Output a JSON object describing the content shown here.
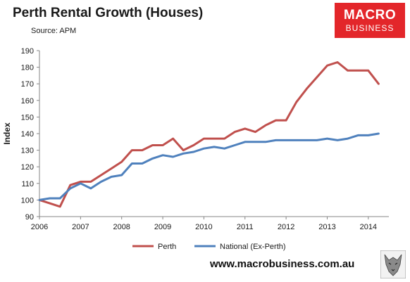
{
  "header": {
    "title": "Perth Rental Growth (Houses)",
    "source": "Source: APM"
  },
  "logo": {
    "line1": "MACRO",
    "line2": "BUSINESS",
    "color": "#e3262a"
  },
  "footer": {
    "url": "www.macrobusiness.com.au"
  },
  "chart_data": {
    "type": "line",
    "title": "Perth Rental Growth (Houses)",
    "subtitle": "Source: APM",
    "ylabel": "Index",
    "xlabel": "",
    "xlim": [
      2006,
      2014.5
    ],
    "ylim": [
      90,
      190
    ],
    "x_ticks": [
      "2006",
      "2007",
      "2008",
      "2009",
      "2010",
      "2011",
      "2012",
      "2013",
      "2014"
    ],
    "y_ticks": [
      "90",
      "100",
      "110",
      "120",
      "130",
      "140",
      "150",
      "160",
      "170",
      "180",
      "190"
    ],
    "grid": false,
    "legend_position": "bottom",
    "series": [
      {
        "name": "Perth",
        "color": "#c0504d",
        "x": [
          2006.0,
          2006.25,
          2006.5,
          2006.75,
          2007.0,
          2007.25,
          2007.5,
          2007.75,
          2008.0,
          2008.25,
          2008.5,
          2008.75,
          2009.0,
          2009.25,
          2009.5,
          2009.75,
          2010.0,
          2010.25,
          2010.5,
          2010.75,
          2011.0,
          2011.25,
          2011.5,
          2011.75,
          2012.0,
          2012.25,
          2012.5,
          2012.75,
          2013.0,
          2013.25,
          2013.5,
          2013.75,
          2014.0,
          2014.25
        ],
        "values": [
          100,
          98,
          96,
          109,
          111,
          111,
          115,
          119,
          123,
          130,
          130,
          133,
          133,
          137,
          130,
          133,
          137,
          137,
          137,
          141,
          143,
          141,
          145,
          148,
          148,
          159,
          167,
          174,
          181,
          183,
          178,
          178,
          178,
          170
        ]
      },
      {
        "name": "National (Ex-Perth)",
        "color": "#4f81bd",
        "x": [
          2006.0,
          2006.25,
          2006.5,
          2006.75,
          2007.0,
          2007.25,
          2007.5,
          2007.75,
          2008.0,
          2008.25,
          2008.5,
          2008.75,
          2009.0,
          2009.25,
          2009.5,
          2009.75,
          2010.0,
          2010.25,
          2010.5,
          2010.75,
          2011.0,
          2011.25,
          2011.5,
          2011.75,
          2012.0,
          2012.25,
          2012.5,
          2012.75,
          2013.0,
          2013.25,
          2013.5,
          2013.75,
          2014.0,
          2014.25
        ],
        "values": [
          100,
          101,
          101,
          107,
          110,
          107,
          111,
          114,
          115,
          122,
          122,
          125,
          127,
          126,
          128,
          129,
          131,
          132,
          131,
          133,
          135,
          135,
          135,
          136,
          136,
          136,
          136,
          136,
          137,
          136,
          137,
          139,
          139,
          140
        ]
      }
    ]
  }
}
